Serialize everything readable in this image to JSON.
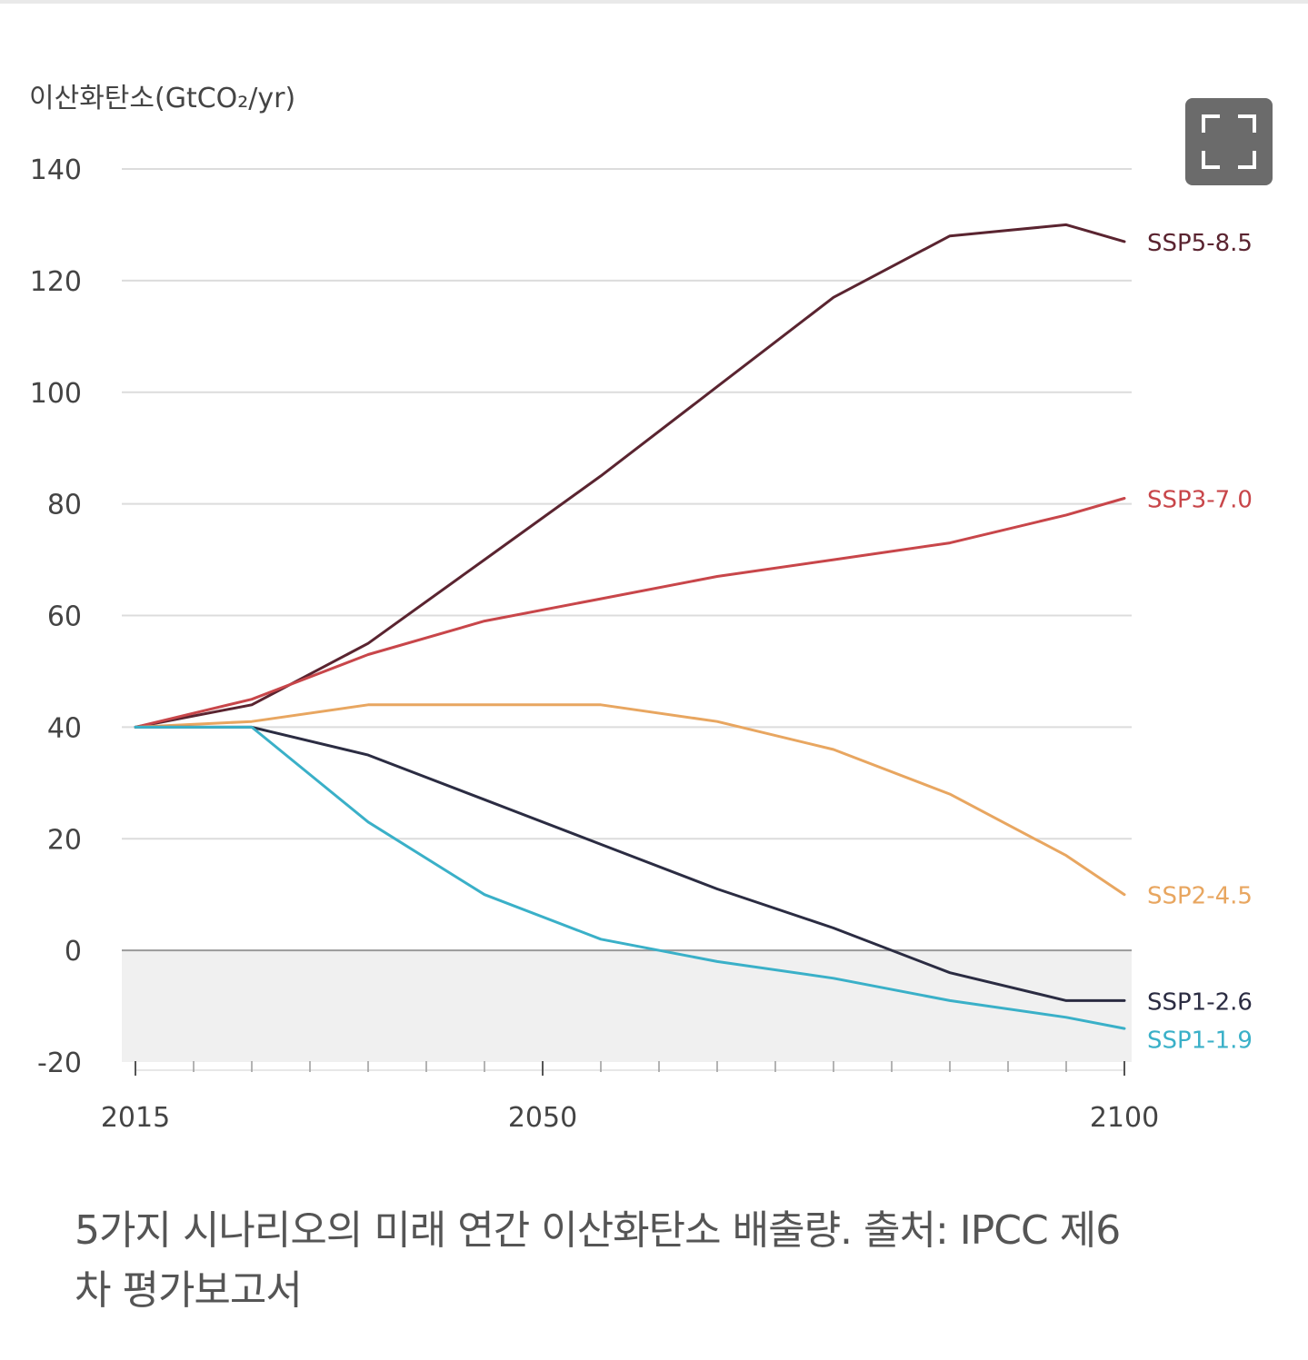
{
  "chart_data": {
    "type": "line",
    "ylabel": "이산화탄소(GtCO₂/yr)",
    "xlabel": "",
    "ylim": [
      -20,
      140
    ],
    "xlim": [
      2015,
      2100
    ],
    "yticks": [
      140,
      120,
      100,
      80,
      60,
      40,
      20,
      0,
      -20
    ],
    "xtick_labels": [
      2015,
      2050,
      2100
    ],
    "grid": true,
    "negative_region_shaded": true,
    "legend": "inline-right",
    "series": [
      {
        "name": "SSP5-8.5",
        "color": "#5a2430",
        "x": [
          2015,
          2025,
          2035,
          2045,
          2055,
          2065,
          2075,
          2085,
          2095,
          2100
        ],
        "y": [
          40,
          44,
          55,
          70,
          85,
          101,
          117,
          128,
          130,
          127
        ]
      },
      {
        "name": "SSP3-7.0",
        "color": "#c8464a",
        "x": [
          2015,
          2025,
          2035,
          2045,
          2055,
          2065,
          2075,
          2085,
          2095,
          2100
        ],
        "y": [
          40,
          45,
          53,
          59,
          63,
          67,
          70,
          73,
          78,
          81
        ]
      },
      {
        "name": "SSP2-4.5",
        "color": "#e8a660",
        "x": [
          2015,
          2025,
          2035,
          2045,
          2055,
          2065,
          2075,
          2085,
          2095,
          2100
        ],
        "y": [
          40,
          41,
          44,
          44,
          44,
          41,
          36,
          28,
          17,
          10
        ]
      },
      {
        "name": "SSP1-2.6",
        "color": "#2b2c42",
        "x": [
          2015,
          2025,
          2035,
          2045,
          2055,
          2065,
          2075,
          2085,
          2095,
          2100
        ],
        "y": [
          40,
          40,
          35,
          27,
          19,
          11,
          4,
          -4,
          -9,
          -9
        ]
      },
      {
        "name": "SSP1-1.9",
        "color": "#3ab0c8",
        "x": [
          2015,
          2025,
          2035,
          2045,
          2055,
          2065,
          2075,
          2085,
          2095,
          2100
        ],
        "y": [
          40,
          40,
          23,
          10,
          2,
          -2,
          -5,
          -9,
          -12,
          -14
        ]
      }
    ]
  },
  "colors": {
    "grid": "#dcdcdc",
    "zero_line": "#9a9a9a",
    "negative_fill": "#f0f0f0",
    "tick_text": "#444444",
    "caption_text": "#555555",
    "button_bg": "#6b6b6b"
  },
  "expand_button": {
    "icon": "expand-icon"
  },
  "caption": {
    "line1": "5가지 시나리오의 미래 연간 이산화탄소 배출량. 출처: IPCC 제6",
    "line2": "차 평가보고서"
  }
}
